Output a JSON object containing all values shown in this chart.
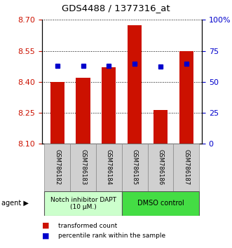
{
  "title": "GDS4488 / 1377316_at",
  "samples": [
    "GSM786182",
    "GSM786183",
    "GSM786184",
    "GSM786185",
    "GSM786186",
    "GSM786187"
  ],
  "bar_values": [
    8.4,
    8.42,
    8.47,
    8.675,
    8.265,
    8.55
  ],
  "percentile_values": [
    0.63,
    0.63,
    0.63,
    0.645,
    0.625,
    0.645
  ],
  "bar_bottom": 8.1,
  "ylim": [
    8.1,
    8.7
  ],
  "yticks_left": [
    8.1,
    8.25,
    8.4,
    8.55,
    8.7
  ],
  "yticks_right": [
    0,
    25,
    50,
    75,
    100
  ],
  "bar_color": "#cc1100",
  "dot_color": "#0000cc",
  "group1_label": "Notch inhibitor DAPT\n(10 μM.)",
  "group2_label": "DMSO control",
  "group1_indices": [
    0,
    1,
    2
  ],
  "group2_indices": [
    3,
    4,
    5
  ],
  "group1_color": "#ccffcc",
  "group2_color": "#44dd44",
  "legend_bar_label": "transformed count",
  "legend_dot_label": "percentile rank within the sample",
  "agent_label": "agent",
  "left_axis_color": "#cc1100",
  "right_axis_color": "#0000cc",
  "sample_box_color": "#d0d0d0"
}
